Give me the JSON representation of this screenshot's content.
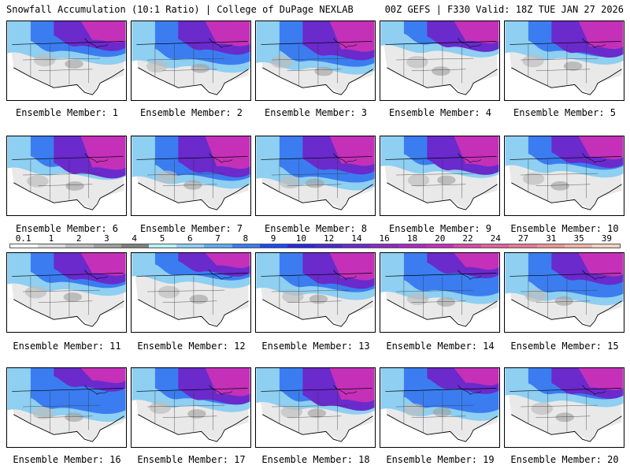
{
  "header": {
    "title_left": "Snowfall Accumulation (10:1 Ratio) | College of DuPage NEXLAB",
    "title_right": "00Z GEFS | F330 Valid: 18Z TUE JAN 27 2026"
  },
  "legend": {
    "labels": [
      "0.1",
      "1",
      "2",
      "3",
      "4",
      "5",
      "6",
      "7",
      "8",
      "9",
      "10",
      "12",
      "14",
      "16",
      "18",
      "20",
      "22",
      "24",
      "27",
      "31",
      "35",
      "39"
    ],
    "colors": [
      "#ffffff",
      "#dcdcdc",
      "#bdbdbd",
      "#9e9e9e",
      "#7f7f7f",
      "#b9f0f2",
      "#8ecff2",
      "#5eaaf0",
      "#3b7df0",
      "#1b4cf0",
      "#2a2adc",
      "#4a2ad0",
      "#6a2acc",
      "#8a2ac6",
      "#a82ac2",
      "#c430b8",
      "#d84aa8",
      "#e0609c",
      "#e67898",
      "#ea9494",
      "#eeb0a8",
      "#f4d0c0"
    ]
  },
  "members": [
    {
      "label": "Ensemble Member: 1"
    },
    {
      "label": "Ensemble Member: 2"
    },
    {
      "label": "Ensemble Member: 3"
    },
    {
      "label": "Ensemble Member: 4"
    },
    {
      "label": "Ensemble Member: 5"
    },
    {
      "label": "Ensemble Member: 6"
    },
    {
      "label": "Ensemble Member: 7"
    },
    {
      "label": "Ensemble Member: 8"
    },
    {
      "label": "Ensemble Member: 9"
    },
    {
      "label": "Ensemble Member: 10"
    },
    {
      "label": "Ensemble Member: 11"
    },
    {
      "label": "Ensemble Member: 12"
    },
    {
      "label": "Ensemble Member: 13"
    },
    {
      "label": "Ensemble Member: 14"
    },
    {
      "label": "Ensemble Member: 15"
    },
    {
      "label": "Ensemble Member: 16"
    },
    {
      "label": "Ensemble Member: 17"
    },
    {
      "label": "Ensemble Member: 18"
    },
    {
      "label": "Ensemble Member: 19"
    },
    {
      "label": "Ensemble Member: 20"
    }
  ]
}
